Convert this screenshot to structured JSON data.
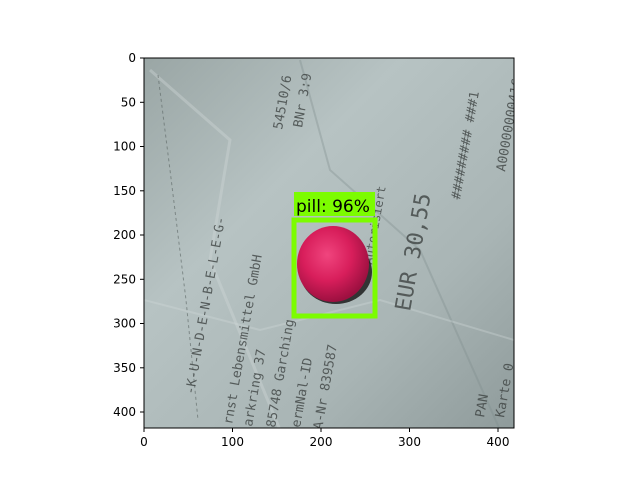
{
  "image": {
    "description_hidden": "",
    "axes": {
      "x_ticks": [
        "0",
        "100",
        "200",
        "300",
        "400"
      ],
      "y_ticks": [
        "0",
        "50",
        "100",
        "150",
        "200",
        "250",
        "300",
        "350",
        "400"
      ]
    },
    "detection": {
      "label": "pill: 96%",
      "box_color": "#7cfc00",
      "pill_color": "#d81e5b"
    },
    "receipt_lines": [
      "-K-U-N-D-E-N-B-E-L-E-G-",
      "rnst Lebensmittel GmbH",
      "arkring 37",
      "85748 Garching",
      "ermNal-ID",
      "A-Nr 839587",
      "54510/6",
      "BNr 3:9",
      "EUR 30,55",
      "######### ###1",
      "A0000000041C",
      "PAN",
      "Karte 0",
      "Autorisiert"
    ]
  }
}
